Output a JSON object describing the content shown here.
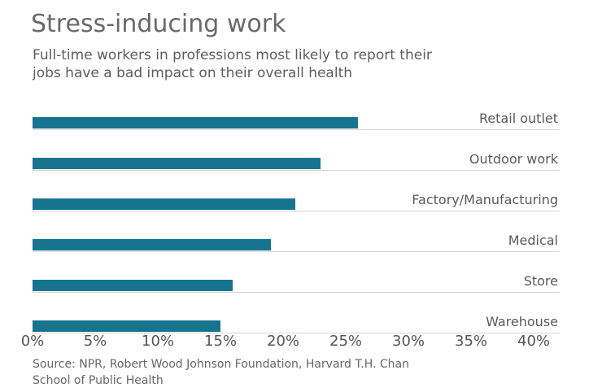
{
  "header": {
    "title": "Stress-inducing work",
    "subtitle_lines": [
      "Full-time workers in professions most likely to report their",
      "jobs have a bad impact on their overall health"
    ]
  },
  "chart_data": {
    "type": "bar",
    "orientation": "horizontal",
    "title": "Stress-inducing work",
    "subtitle": "Full-time workers in professions most likely to report their jobs have a bad impact on their overall health",
    "categories": [
      "Retail outlet",
      "Outdoor work",
      "Factory/Manufacturing",
      "Medical",
      "Store",
      "Warehouse"
    ],
    "values": [
      26,
      23,
      21,
      19,
      16,
      15
    ],
    "unit": "%",
    "xlabel": "",
    "ylabel": "",
    "xlim": [
      0,
      40
    ],
    "x_tick_labels": [
      "0%",
      "5%",
      "10%",
      "15%",
      "20%",
      "25%",
      "30%",
      "35%",
      "40%"
    ],
    "x_tick_values": [
      0,
      5,
      10,
      15,
      20,
      25,
      30,
      35,
      40
    ],
    "grid": "baseline-per-row",
    "legend": "none",
    "bar_color": "#17748e",
    "baseline_color": "#d6d6d6"
  },
  "footer": {
    "source_lines": [
      "Source: NPR, Robert Wood Johnson Foundation, Harvard T.H. Chan",
      "School of Public Health"
    ]
  }
}
